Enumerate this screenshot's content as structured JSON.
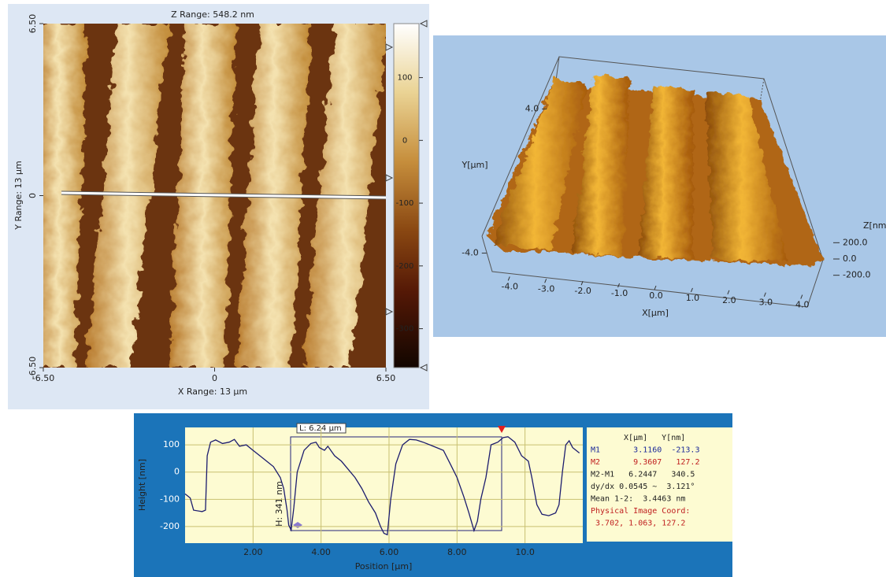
{
  "chart_data": [
    {
      "type": "image",
      "title": "Z Range:  548.2 nm",
      "xlabel": "X Range: 13 µm",
      "ylabel": "Y Range: 13 µm",
      "xlim": [
        -6.5,
        6.5
      ],
      "xticks": [
        {
          "value": -6.5,
          "label": "-6.50"
        },
        0,
        {
          "value": 6.5,
          "label": "6.50"
        }
      ],
      "ylim": [
        -6.5,
        6.5
      ],
      "yticks": [
        {
          "value": -6.5,
          "label": "-6.50"
        },
        0,
        {
          "value": 6.5,
          "label": "6.50"
        }
      ],
      "zlim": [
        -362,
        186
      ],
      "zticks": [
        100,
        0,
        -100,
        -200,
        -300
      ]
    },
    {
      "type": "surface",
      "xlabel": "X[µm]",
      "ylabel": "Y[µm]",
      "zlabel": "Z[nm",
      "xlim": [
        -4.5,
        4.5
      ],
      "xticks": [
        {
          "value": -4,
          "label": "-4.0"
        },
        {
          "value": -3,
          "label": "-3.0"
        },
        {
          "value": -2,
          "label": "-2.0"
        },
        {
          "value": -1,
          "label": "-1.0"
        },
        {
          "value": 0,
          "label": "0.0"
        },
        {
          "value": 1,
          "label": "1.0"
        },
        {
          "value": 2,
          "label": "2.0"
        },
        {
          "value": 3,
          "label": "3.0"
        },
        {
          "value": 4,
          "label": "4.0"
        }
      ],
      "ylim": [
        -4.5,
        4.5
      ],
      "yticks": [
        {
          "value": -4,
          "label": "-4.0"
        },
        {
          "value": 4,
          "label": "4.0"
        }
      ],
      "zlim": [
        -300,
        300
      ],
      "zticks": [
        {
          "value": 200,
          "label": "200.0"
        },
        {
          "value": 0,
          "label": "0.0"
        },
        {
          "value": -200,
          "label": "-200.0"
        }
      ]
    },
    {
      "type": "line",
      "xlabel": "Position [µm]",
      "ylabel": "Height [nm]",
      "color": "#1c1c6e",
      "xlim": [
        0,
        11.7
      ],
      "xticks": [
        {
          "value": 2,
          "label": "2.00"
        },
        {
          "value": 4,
          "label": "4.00"
        },
        {
          "value": 6,
          "label": "6.00"
        },
        {
          "value": 8,
          "label": "8.00"
        },
        {
          "value": 10,
          "label": "10.0"
        }
      ],
      "ylim": [
        -261,
        164
      ],
      "yticks": [
        100,
        0,
        -100,
        -200
      ],
      "grid": true,
      "x": [
        0,
        0.15,
        0.25,
        0.5,
        0.6,
        0.65,
        0.75,
        0.9,
        1.1,
        1.3,
        1.45,
        1.6,
        1.8,
        2.0,
        2.2,
        2.4,
        2.6,
        2.8,
        2.9,
        3.0,
        3.05,
        3.12,
        3.2,
        3.3,
        3.5,
        3.7,
        3.85,
        3.95,
        4.1,
        4.2,
        4.4,
        4.6,
        4.8,
        5.0,
        5.2,
        5.4,
        5.6,
        5.75,
        5.85,
        5.95,
        6.05,
        6.2,
        6.4,
        6.6,
        6.8,
        7.0,
        7.2,
        7.4,
        7.6,
        7.8,
        8.0,
        8.2,
        8.35,
        8.5,
        8.6,
        8.7,
        8.85,
        9.0,
        9.2,
        9.36,
        9.5,
        9.7,
        9.9,
        10.1,
        10.2,
        10.35,
        10.5,
        10.7,
        10.9,
        11.0,
        11.1,
        11.2,
        11.3,
        11.4,
        11.6
      ],
      "values": [
        -80,
        -95,
        -140,
        -145,
        -140,
        60,
        110,
        118,
        105,
        110,
        120,
        95,
        100,
        80,
        60,
        40,
        20,
        -20,
        -60,
        -140,
        -195,
        -213,
        -130,
        0,
        80,
        105,
        110,
        90,
        80,
        95,
        60,
        40,
        10,
        -20,
        -60,
        -110,
        -150,
        -200,
        -225,
        -230,
        -100,
        30,
        100,
        120,
        118,
        110,
        100,
        90,
        80,
        30,
        -20,
        -90,
        -150,
        -215,
        -180,
        -100,
        -20,
        100,
        110,
        127,
        130,
        110,
        60,
        40,
        -20,
        -120,
        -155,
        -160,
        -150,
        -120,
        0,
        100,
        115,
        90,
        70
      ],
      "annotations": [
        "L:  6.24 µm",
        "H:  341 nm"
      ],
      "readout": [
        "X[µm]   Y[nm]",
        "M1       3.1160  -213.3",
        "M2       9.3607   127.2",
        "M2-M1   6.2447   340.5",
        "dy/dx 0.0545 ~  3.121°",
        "Mean 1-2:  3.4463 nm",
        "Physical Image Coord:",
        " 3.702, 1.063, 127.2"
      ]
    }
  ]
}
